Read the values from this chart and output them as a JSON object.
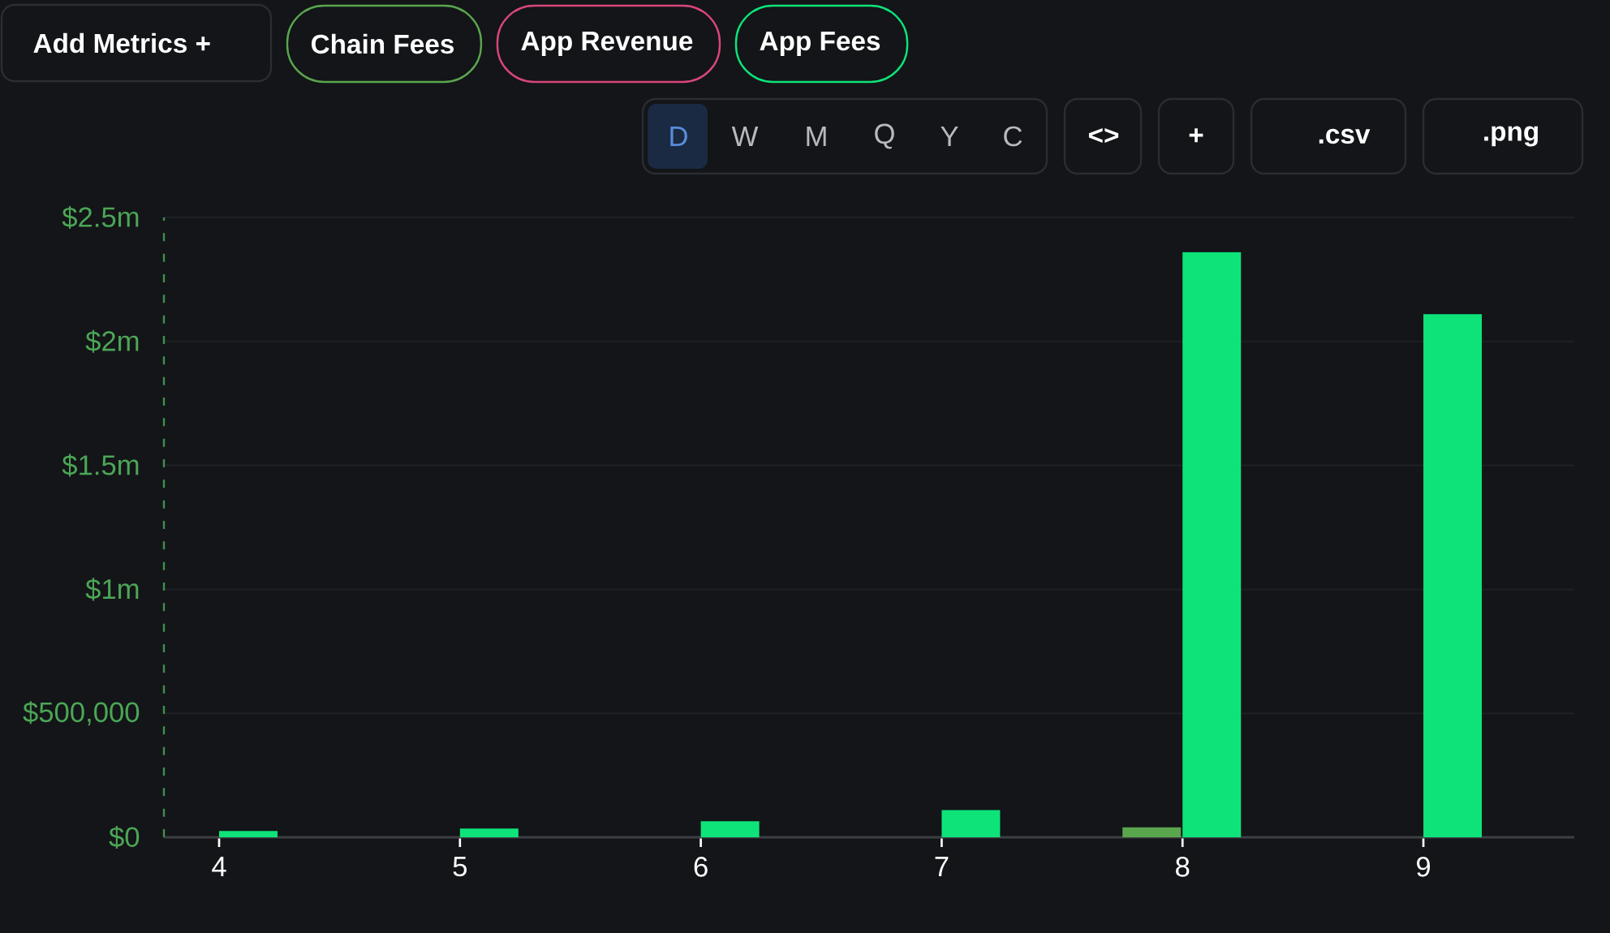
{
  "chart_data": {
    "type": "bar",
    "categories": [
      "4",
      "5",
      "6",
      "7",
      "8",
      "9"
    ],
    "series": [
      {
        "name": "Chain Fees",
        "color": "#5aa64e",
        "values": [
          null,
          null,
          null,
          null,
          40000,
          null
        ]
      },
      {
        "name": "App Revenue",
        "color": "#d9467a",
        "values": [
          null,
          null,
          null,
          null,
          null,
          null
        ]
      },
      {
        "name": "App Fees",
        "color": "#0ee37a",
        "values": [
          25000,
          35000,
          65000,
          110000,
          2360000,
          2110000
        ]
      }
    ],
    "ylim": [
      0,
      2500000
    ],
    "yticks": [
      {
        "value": 0,
        "label": "$0"
      },
      {
        "value": 500000,
        "label": "$500,000"
      },
      {
        "value": 1000000,
        "label": "$1m"
      },
      {
        "value": 1500000,
        "label": "$1.5m"
      },
      {
        "value": 2000000,
        "label": "$2m"
      },
      {
        "value": 2500000,
        "label": "$2.5m"
      }
    ],
    "grid": "y",
    "legend": "top left",
    "annotations": [
      "Add Metrics +",
      "D",
      "W",
      "M",
      "Q",
      "Y",
      "C",
      "<>",
      "+",
      ".csv",
      ".png"
    ]
  }
}
